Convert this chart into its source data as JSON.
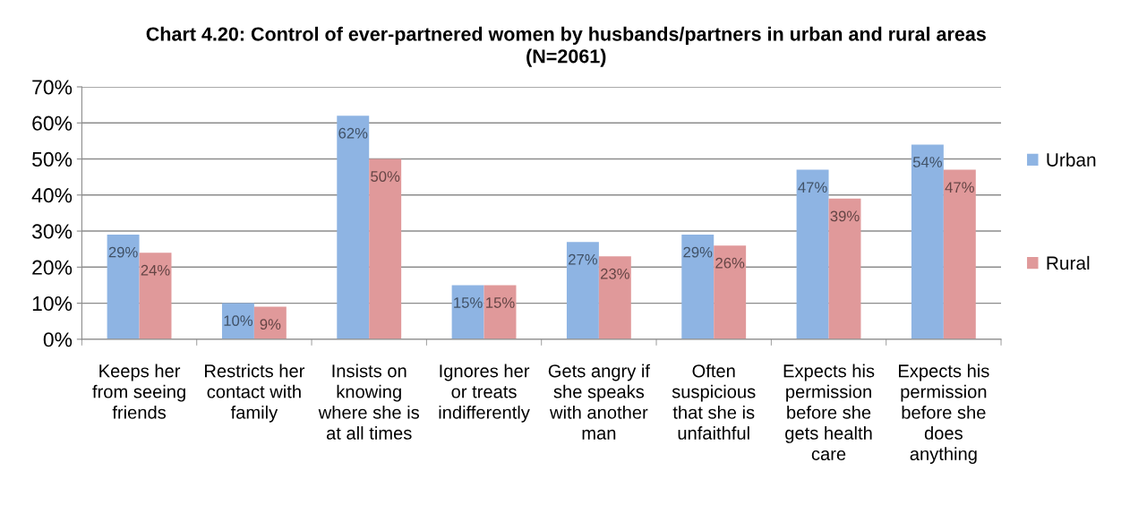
{
  "chart_data": {
    "type": "bar",
    "title": "Chart 4.20: Control of ever-partnered women by husbands/partners in urban and rural areas\n(N=2061)",
    "categories": [
      "Keeps her\nfrom seeing\nfriends",
      "Restricts her\ncontact with\nfamily",
      "Insists on\nknowing\nwhere she is\nat all times",
      "Ignores her\nor treats\nindifferently",
      "Gets angry if\nshe speaks\nwith another\nman",
      "Often\nsuspicious\nthat she is\nunfaithful",
      "Expects his\npermission\nbefore she\ngets health\ncare",
      "Expects his\npermission\nbefore she\ndoes\nanything"
    ],
    "series": [
      {
        "name": "Urban",
        "color": "#8eb4e3",
        "values": [
          29,
          10,
          62,
          15,
          27,
          29,
          47,
          54
        ],
        "value_labels": [
          "29%",
          "10%",
          "62%",
          "15%",
          "27%",
          "29%",
          "47%",
          "54%"
        ]
      },
      {
        "name": "Rural",
        "color": "#e0999a",
        "values": [
          24,
          9,
          50,
          15,
          23,
          26,
          39,
          47
        ],
        "value_labels": [
          "24%",
          "9%",
          "50%",
          "15%",
          "23%",
          "26%",
          "39%",
          "47%"
        ]
      }
    ],
    "ylim": [
      0,
      70
    ],
    "yticks": [
      {
        "value": 0,
        "label": "0%"
      },
      {
        "value": 10,
        "label": "10%"
      },
      {
        "value": 20,
        "label": "20%"
      },
      {
        "value": 30,
        "label": "30%"
      },
      {
        "value": 40,
        "label": "40%"
      },
      {
        "value": 50,
        "label": "50%"
      },
      {
        "value": 60,
        "label": "60%"
      },
      {
        "value": 70,
        "label": "70%"
      }
    ],
    "grid": "y",
    "legend": "right"
  }
}
